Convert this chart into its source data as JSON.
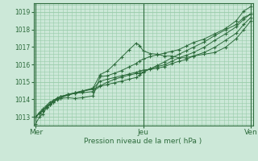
{
  "xlabel": "Pression niveau de la mer( hPa )",
  "bg_color": "#cce8d8",
  "grid_color": "#99ccaa",
  "line_color": "#2d6b3c",
  "ylim": [
    1012.5,
    1019.5
  ],
  "yticks": [
    1013,
    1014,
    1015,
    1016,
    1017,
    1018,
    1019
  ],
  "xtick_labels": [
    "Mer",
    "Jeu",
    "Ven"
  ],
  "xtick_positions": [
    0.0,
    0.5,
    1.0
  ],
  "xlim": [
    -0.01,
    1.01
  ],
  "pressures": [
    [
      1012.6,
      1013.0,
      1013.15,
      1013.5,
      1013.7,
      1013.85,
      1014.0,
      1014.05,
      1014.1,
      1014.05,
      1014.1,
      1014.2,
      1015.3,
      1015.35,
      1015.5,
      1015.65,
      1015.85,
      1016.05,
      1016.2,
      1016.3,
      1016.45,
      1016.55,
      1016.65,
      1016.75,
      1016.85,
      1017.05,
      1017.25,
      1017.45,
      1017.75,
      1018.05,
      1018.5,
      1019.05,
      1019.3
    ],
    [
      1013.0,
      1013.25,
      1013.45,
      1013.65,
      1013.85,
      1013.95,
      1014.05,
      1014.15,
      1014.25,
      1014.35,
      1014.38,
      1014.45,
      1014.75,
      1014.85,
      1014.95,
      1015.05,
      1015.15,
      1015.25,
      1015.38,
      1015.55,
      1015.75,
      1015.95,
      1016.15,
      1016.38,
      1016.58,
      1016.78,
      1016.98,
      1017.28,
      1017.65,
      1017.98,
      1018.28,
      1018.68,
      1018.88
    ],
    [
      1013.0,
      1013.2,
      1013.38,
      1013.58,
      1013.75,
      1013.88,
      1014.05,
      1014.15,
      1014.28,
      1014.38,
      1014.48,
      1014.58,
      1014.78,
      1014.98,
      1015.15,
      1015.28,
      1015.38,
      1015.48,
      1015.5,
      1015.58,
      1015.75,
      1015.88,
      1015.98,
      1016.18,
      1016.38,
      1016.52,
      1016.68,
      1016.98,
      1017.38,
      1017.75,
      1018.15,
      1018.58,
      1018.88
    ],
    [
      1013.0,
      1013.18,
      1013.35,
      1013.55,
      1013.72,
      1013.85,
      1013.98,
      1014.08,
      1014.25,
      1014.35,
      1014.45,
      1014.62,
      1015.05,
      1015.15,
      1015.25,
      1015.35,
      1015.45,
      1015.55,
      1015.62,
      1015.68,
      1015.72,
      1015.78,
      1015.88,
      1016.05,
      1016.18,
      1016.28,
      1016.48,
      1016.68,
      1016.98,
      1017.38,
      1017.78,
      1018.28,
      1018.68
    ],
    [
      1013.0,
      1013.18,
      1013.35,
      1013.55,
      1013.75,
      1013.95,
      1014.08,
      1014.18,
      1014.28,
      1014.38,
      1014.48,
      1014.65,
      1015.42,
      1015.62,
      1016.02,
      1016.42,
      1016.82,
      1017.22,
      1017.08,
      1016.78,
      1016.62,
      1016.58,
      1016.48,
      1016.48,
      1016.38,
      1016.38,
      1016.48,
      1016.58,
      1016.68,
      1016.98,
      1017.48,
      1017.98,
      1018.48
    ]
  ],
  "x_points": [
    0.0,
    0.017,
    0.033,
    0.05,
    0.067,
    0.083,
    0.1,
    0.117,
    0.15,
    0.183,
    0.217,
    0.267,
    0.3,
    0.333,
    0.367,
    0.4,
    0.433,
    0.467,
    0.483,
    0.5,
    0.533,
    0.567,
    0.6,
    0.633,
    0.667,
    0.7,
    0.733,
    0.783,
    0.833,
    0.883,
    0.933,
    0.967,
    1.0
  ]
}
